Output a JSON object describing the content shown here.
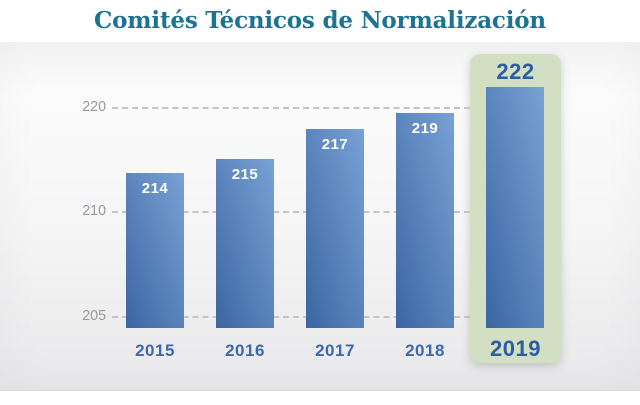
{
  "chart_data": {
    "type": "bar",
    "title": "Comités Técnicos de Normalización",
    "categories": [
      "2015",
      "2016",
      "2017",
      "2018",
      "2019"
    ],
    "values": [
      214,
      215,
      217,
      219,
      222
    ],
    "yticks": [
      220,
      210,
      205
    ],
    "ylim": [
      204,
      223
    ],
    "xlabel": "",
    "ylabel": "",
    "grid": "horizontal-dashed",
    "legend": "none",
    "highlight_category": "2019",
    "highlight_value": 222,
    "colors": {
      "title": "#1d7492",
      "bar_gradient_left": "#4271b3",
      "bar_gradient_right": "#6292cf",
      "bar_value_label": "#ffffff",
      "year_label": "#3c68b0",
      "highlight_label": "#2d5ca6",
      "highlight_band": "#d2dfc2",
      "axis_label": "#9a9a9e",
      "gridline": "#c4c4c6"
    }
  }
}
